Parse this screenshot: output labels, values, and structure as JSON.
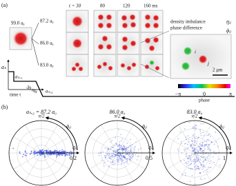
{
  "panel_a": {
    "label": "(a)",
    "initial": "99.0 a₀",
    "rows": [
      "87.2 a₀",
      "86.0 a₀",
      "83.0 a₀"
    ],
    "times": [
      "t = 30",
      "80",
      "120",
      "160 ms"
    ],
    "ramp": {
      "axis_y": "aₛ",
      "level_1": "aₛ,₁",
      "level_2": "aₛ,₂",
      "duration": "30 ms",
      "axis_x": "time t"
    },
    "inset": {
      "line_1": "density imbalance",
      "symbol_1": "ηᵢⱼ",
      "line_2": "phase difference",
      "symbol_2": "ϕᵢⱼ",
      "spot_i": "i",
      "spot_j": "j",
      "scale": "2 μm",
      "ticks": [
        "−π",
        "0",
        "π"
      ],
      "axis": "phase"
    }
  },
  "panel_b": {
    "label": "(b)",
    "plots": [
      {
        "title": "aₛ,₂ = 87.2 a₀",
        "top": "π/2",
        "angle": "ϕᵢⱼ",
        "radius": "ηᵢⱼ",
        "rmax": 0.2
      },
      {
        "title": "86.0 a₀",
        "top": "π/2",
        "angle": "ϕᵢⱼ",
        "radius": "ηᵢⱼ",
        "rmax": 0.5
      },
      {
        "title": "83.0 a₀",
        "top": "π/2",
        "angle": "ϕᵢⱼ",
        "radius": "ηᵢⱼ",
        "rmax": 1
      }
    ]
  }
}
